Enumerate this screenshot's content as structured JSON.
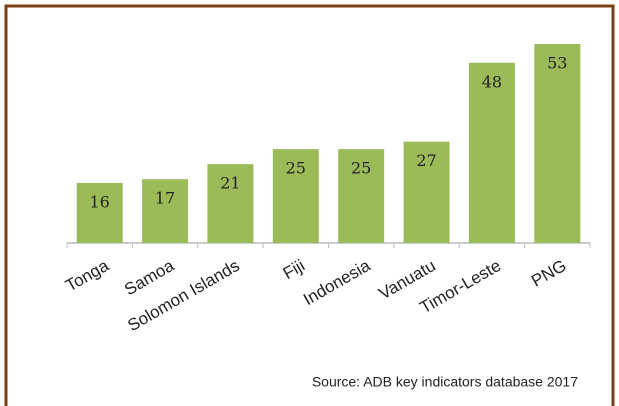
{
  "chart_data": {
    "type": "bar",
    "categories": [
      "Tonga",
      "Samoa",
      "Solomon Islands",
      "Fiji",
      "Indonesia",
      "Vanuatu",
      "Timor-Leste",
      "PNG"
    ],
    "values": [
      16,
      17,
      21,
      25,
      25,
      27,
      48,
      53
    ],
    "color": "#9bbb59",
    "annotation": "Source: ADB key indicators database 2017"
  }
}
